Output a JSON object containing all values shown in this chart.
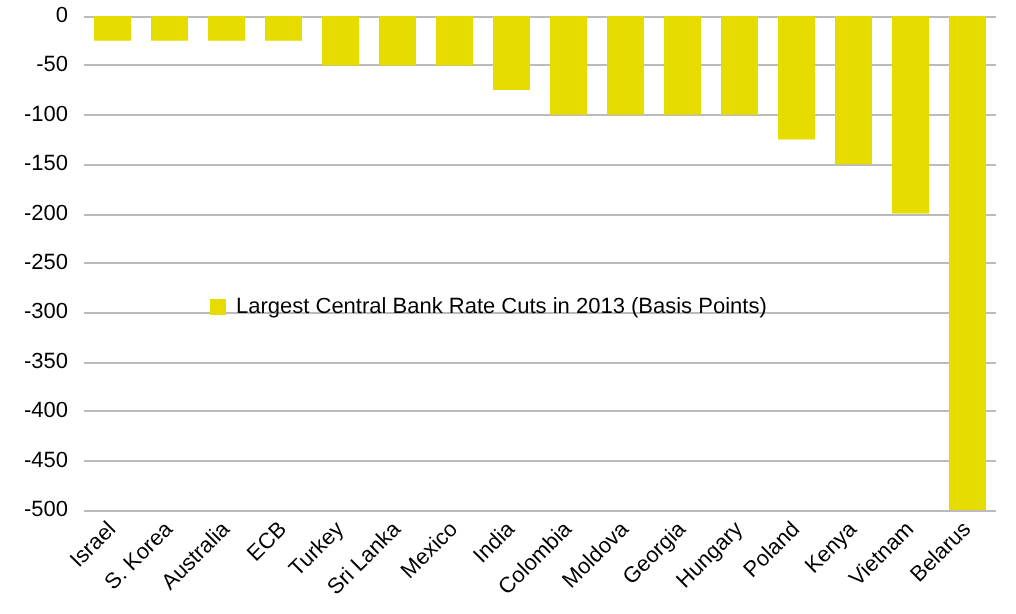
{
  "chart_data": {
    "type": "bar",
    "categories": [
      "Israel",
      "S. Korea",
      "Australia",
      "ECB",
      "Turkey",
      "Sri Lanka",
      "Mexico",
      "India",
      "Colombia",
      "Moldova",
      "Georgia",
      "Hungary",
      "Poland",
      "Kenya",
      "Vietnam",
      "Belarus"
    ],
    "series": [
      {
        "name": "Largest Central Bank Rate Cuts in 2013 (Basis Points)",
        "color": "#e6dc00",
        "values": [
          -25,
          -25,
          -25,
          -25,
          -50,
          -50,
          -50,
          -75,
          -100,
          -100,
          -100,
          -100,
          -125,
          -150,
          -200,
          -500
        ]
      }
    ],
    "ylim": [
      -500,
      0
    ],
    "yticks": [
      -500,
      -450,
      -400,
      -350,
      -300,
      -250,
      -200,
      -150,
      -100,
      -50,
      0
    ],
    "grid": "y",
    "legend": "left"
  }
}
